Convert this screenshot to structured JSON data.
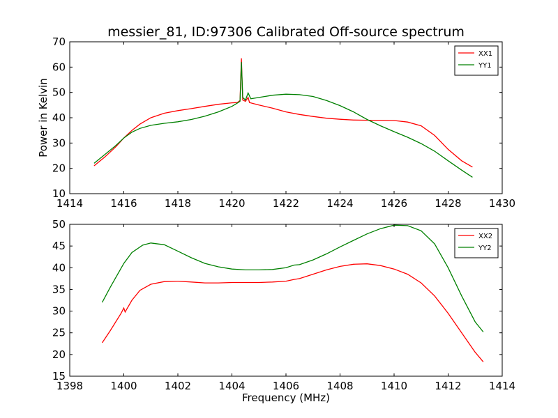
{
  "figure": {
    "title": "messier_81, ID:97306 Calibrated Off-source spectrum"
  },
  "colors": {
    "XX": "#ff0000",
    "YY": "#008000"
  },
  "chart_data": [
    {
      "type": "line",
      "title": "messier_81, ID:97306 Calibrated Off-source spectrum",
      "xlabel": "",
      "ylabel": "Power in Kelvin",
      "xlim": [
        1414,
        1430
      ],
      "ylim": [
        10,
        70
      ],
      "xticks": [
        "1414",
        "1416",
        "1418",
        "1420",
        "1422",
        "1424",
        "1426",
        "1428",
        "1430"
      ],
      "yticks": [
        "10",
        "20",
        "30",
        "40",
        "50",
        "60",
        "70"
      ],
      "grid": false,
      "legend": "top-right",
      "series": [
        {
          "name": "XX1",
          "color": "#ff0000",
          "points": [
            [
              1414.9,
              21.0
            ],
            [
              1415.3,
              24.5
            ],
            [
              1415.7,
              28.5
            ],
            [
              1416.0,
              32.0
            ],
            [
              1416.3,
              35.0
            ],
            [
              1416.6,
              37.5
            ],
            [
              1417.0,
              40.0
            ],
            [
              1417.5,
              41.8
            ],
            [
              1418.0,
              42.8
            ],
            [
              1418.5,
              43.6
            ],
            [
              1419.0,
              44.5
            ],
            [
              1419.5,
              45.3
            ],
            [
              1420.0,
              45.9
            ],
            [
              1420.2,
              46.0
            ],
            [
              1420.3,
              46.8
            ],
            [
              1420.35,
              63.5
            ],
            [
              1420.4,
              47.0
            ],
            [
              1420.5,
              46.5
            ],
            [
              1420.6,
              48.0
            ],
            [
              1420.65,
              46.0
            ],
            [
              1421.0,
              45.0
            ],
            [
              1421.5,
              43.8
            ],
            [
              1422.0,
              42.3
            ],
            [
              1422.5,
              41.3
            ],
            [
              1423.0,
              40.5
            ],
            [
              1423.5,
              39.8
            ],
            [
              1424.0,
              39.4
            ],
            [
              1424.5,
              39.1
            ],
            [
              1425.0,
              39.0
            ],
            [
              1425.5,
              39.0
            ],
            [
              1426.0,
              38.9
            ],
            [
              1426.5,
              38.3
            ],
            [
              1427.0,
              36.8
            ],
            [
              1427.5,
              33.0
            ],
            [
              1428.0,
              27.5
            ],
            [
              1428.5,
              23.0
            ],
            [
              1428.9,
              20.5
            ]
          ]
        },
        {
          "name": "YY1",
          "color": "#008000",
          "points": [
            [
              1414.9,
              22.0
            ],
            [
              1415.3,
              25.5
            ],
            [
              1415.7,
              29.0
            ],
            [
              1416.0,
              32.0
            ],
            [
              1416.3,
              34.3
            ],
            [
              1416.6,
              35.8
            ],
            [
              1417.0,
              37.0
            ],
            [
              1417.5,
              37.8
            ],
            [
              1418.0,
              38.4
            ],
            [
              1418.5,
              39.3
            ],
            [
              1419.0,
              40.6
            ],
            [
              1419.5,
              42.3
            ],
            [
              1420.0,
              44.5
            ],
            [
              1420.2,
              45.8
            ],
            [
              1420.3,
              46.5
            ],
            [
              1420.35,
              62.0
            ],
            [
              1420.4,
              48.0
            ],
            [
              1420.5,
              47.0
            ],
            [
              1420.6,
              49.8
            ],
            [
              1420.7,
              47.5
            ],
            [
              1421.0,
              48.0
            ],
            [
              1421.5,
              48.9
            ],
            [
              1422.0,
              49.3
            ],
            [
              1422.5,
              49.1
            ],
            [
              1423.0,
              48.4
            ],
            [
              1423.5,
              46.8
            ],
            [
              1424.0,
              44.8
            ],
            [
              1424.5,
              42.3
            ],
            [
              1425.0,
              39.3
            ],
            [
              1425.5,
              36.8
            ],
            [
              1426.0,
              34.5
            ],
            [
              1426.5,
              32.3
            ],
            [
              1427.0,
              29.8
            ],
            [
              1427.5,
              26.8
            ],
            [
              1428.0,
              23.0
            ],
            [
              1428.5,
              19.3
            ],
            [
              1428.9,
              16.5
            ]
          ]
        }
      ]
    },
    {
      "type": "line",
      "title": "",
      "xlabel": "Frequency (MHz)",
      "ylabel": "",
      "xlim": [
        1398,
        1414
      ],
      "ylim": [
        15,
        50
      ],
      "xticks": [
        "1398",
        "1400",
        "1402",
        "1404",
        "1406",
        "1408",
        "1410",
        "1412",
        "1414"
      ],
      "yticks": [
        "15",
        "20",
        "25",
        "30",
        "35",
        "40",
        "45",
        "50"
      ],
      "grid": false,
      "legend": "top-right",
      "series": [
        {
          "name": "XX2",
          "color": "#ff0000",
          "points": [
            [
              1399.2,
              22.7
            ],
            [
              1399.5,
              25.5
            ],
            [
              1399.9,
              29.5
            ],
            [
              1400.0,
              30.7
            ],
            [
              1400.05,
              29.8
            ],
            [
              1400.3,
              32.5
            ],
            [
              1400.6,
              34.8
            ],
            [
              1401.0,
              36.2
            ],
            [
              1401.5,
              36.8
            ],
            [
              1402.0,
              36.9
            ],
            [
              1402.5,
              36.7
            ],
            [
              1403.0,
              36.5
            ],
            [
              1403.5,
              36.5
            ],
            [
              1404.0,
              36.6
            ],
            [
              1404.5,
              36.6
            ],
            [
              1405.0,
              36.6
            ],
            [
              1405.5,
              36.7
            ],
            [
              1406.0,
              36.9
            ],
            [
              1406.3,
              37.3
            ],
            [
              1406.5,
              37.5
            ],
            [
              1407.0,
              38.5
            ],
            [
              1407.5,
              39.5
            ],
            [
              1408.0,
              40.3
            ],
            [
              1408.5,
              40.8
            ],
            [
              1409.0,
              40.9
            ],
            [
              1409.5,
              40.5
            ],
            [
              1410.0,
              39.7
            ],
            [
              1410.5,
              38.5
            ],
            [
              1411.0,
              36.5
            ],
            [
              1411.5,
              33.5
            ],
            [
              1412.0,
              29.5
            ],
            [
              1412.5,
              25.0
            ],
            [
              1413.0,
              20.5
            ],
            [
              1413.3,
              18.3
            ]
          ]
        },
        {
          "name": "YY2",
          "color": "#008000",
          "points": [
            [
              1399.2,
              32.0
            ],
            [
              1399.5,
              35.5
            ],
            [
              1400.0,
              41.0
            ],
            [
              1400.3,
              43.5
            ],
            [
              1400.7,
              45.2
            ],
            [
              1401.0,
              45.7
            ],
            [
              1401.5,
              45.3
            ],
            [
              1402.0,
              43.8
            ],
            [
              1402.5,
              42.3
            ],
            [
              1403.0,
              41.0
            ],
            [
              1403.5,
              40.2
            ],
            [
              1404.0,
              39.7
            ],
            [
              1404.5,
              39.5
            ],
            [
              1405.0,
              39.5
            ],
            [
              1405.5,
              39.6
            ],
            [
              1406.0,
              40.0
            ],
            [
              1406.3,
              40.6
            ],
            [
              1406.5,
              40.7
            ],
            [
              1407.0,
              41.8
            ],
            [
              1407.5,
              43.2
            ],
            [
              1408.0,
              44.8
            ],
            [
              1408.5,
              46.3
            ],
            [
              1409.0,
              47.8
            ],
            [
              1409.5,
              49.0
            ],
            [
              1410.0,
              49.8
            ],
            [
              1410.5,
              49.7
            ],
            [
              1411.0,
              48.5
            ],
            [
              1411.5,
              45.5
            ],
            [
              1412.0,
              40.0
            ],
            [
              1412.5,
              33.5
            ],
            [
              1413.0,
              27.5
            ],
            [
              1413.3,
              25.2
            ]
          ]
        }
      ]
    }
  ]
}
